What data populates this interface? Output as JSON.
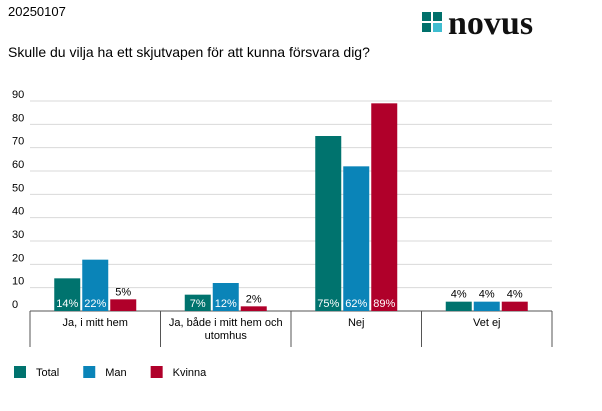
{
  "header": {
    "date": "20250107",
    "question": "Skulle du vilja ha ett skjutvapen för att kunna försvara dig?"
  },
  "logo": {
    "text": "novus",
    "colors": [
      "#00706b",
      "#3fbdd0",
      "#00706b"
    ]
  },
  "chart_data": {
    "type": "bar",
    "title": "",
    "xlabel": "",
    "ylabel": "",
    "ylim": [
      0,
      90
    ],
    "yticks": [
      0,
      10,
      20,
      30,
      40,
      50,
      60,
      70,
      80,
      90
    ],
    "grid": true,
    "legend_position": "bottom-left",
    "categories": [
      [
        "Ja, i mitt hem"
      ],
      [
        "Ja, både i mitt hem och",
        "utomhus"
      ],
      [
        "Nej"
      ],
      [
        "Vet ej"
      ]
    ],
    "series": [
      {
        "name": "Total",
        "color": "#00736e",
        "values": [
          14,
          7,
          75,
          4
        ],
        "labels": [
          "14%",
          "7%",
          "75%",
          "4%"
        ]
      },
      {
        "name": "Man",
        "color": "#0a84b8",
        "values": [
          22,
          12,
          62,
          4
        ],
        "labels": [
          "22%",
          "12%",
          "62%",
          "4%"
        ]
      },
      {
        "name": "Kvinna",
        "color": "#b0002a",
        "values": [
          5,
          2,
          89,
          4
        ],
        "labels": [
          "5%",
          "2%",
          "89%",
          "4%"
        ]
      }
    ]
  }
}
